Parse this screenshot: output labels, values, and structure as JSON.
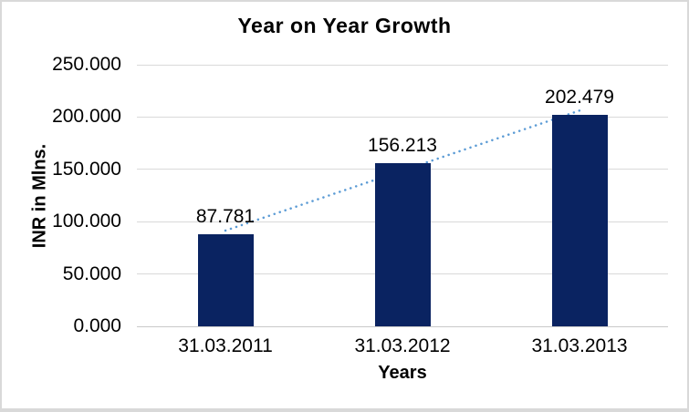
{
  "chart_data": {
    "type": "bar",
    "title": "Year on Year Growth",
    "xlabel": "Years",
    "ylabel": "INR in Mlns.",
    "categories": [
      "31.03.2011",
      "31.03.2012",
      "31.03.2013"
    ],
    "values": [
      87.781,
      156.213,
      202.479
    ],
    "data_labels": [
      "87.781",
      "156.213",
      "202.479"
    ],
    "y_ticks": [
      0,
      50,
      100,
      150,
      200,
      250
    ],
    "y_tick_labels": [
      "0.000",
      "50.000",
      "100.000",
      "150.000",
      "200.000",
      "250.000"
    ],
    "ylim": [
      0,
      250
    ],
    "grid": true,
    "legend": "none",
    "trendline": {
      "type": "linear",
      "style": "dotted",
      "color": "#5b9bd5"
    },
    "colors": {
      "bar": "#0a2361",
      "trendline": "#5b9bd5",
      "gridline": "#d9d9d9",
      "axis_line": "#c9c9c9",
      "text": "#000000",
      "background": "#ffffff",
      "border": "#d9d9d9"
    }
  }
}
